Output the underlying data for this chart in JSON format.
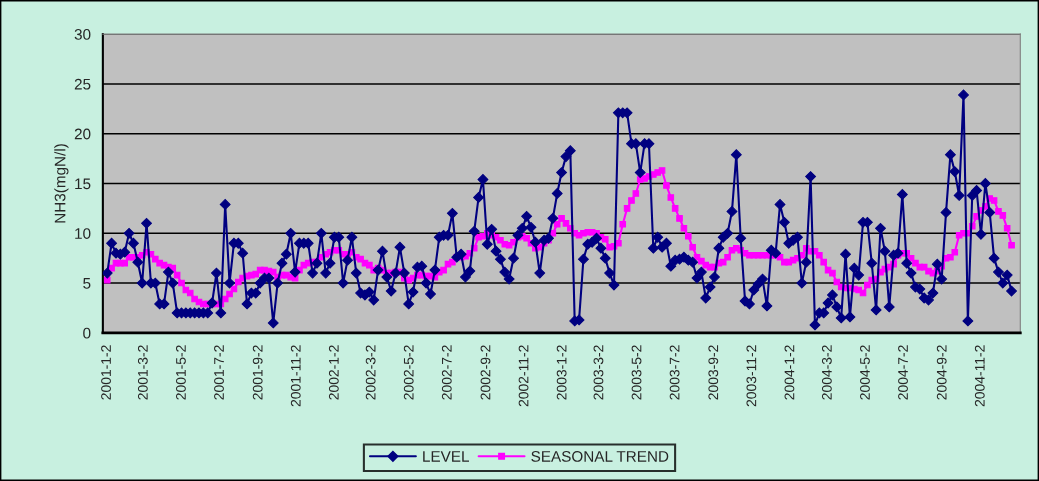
{
  "chart_data": {
    "type": "line",
    "ylabel": "NH3(mgN/l)",
    "x": [
      "2001-01-02",
      "2001-01-09",
      "2001-01-16",
      "2001-01-23",
      "2001-01-30",
      "2001-02-06",
      "2001-02-13",
      "2001-02-20",
      "2001-02-27",
      "2001-03-06",
      "2001-03-13",
      "2001-03-20",
      "2001-03-27",
      "2001-04-03",
      "2001-04-10",
      "2001-04-17",
      "2001-04-24",
      "2001-05-01",
      "2001-05-08",
      "2001-05-15",
      "2001-05-22",
      "2001-05-29",
      "2001-06-05",
      "2001-06-12",
      "2001-06-19",
      "2001-06-26",
      "2001-07-03",
      "2001-07-10",
      "2001-07-17",
      "2001-07-24",
      "2001-07-31",
      "2001-08-07",
      "2001-08-14",
      "2001-08-21",
      "2001-08-28",
      "2001-09-04",
      "2001-09-11",
      "2001-09-18",
      "2001-09-25",
      "2001-10-02",
      "2001-10-09",
      "2001-10-16",
      "2001-10-23",
      "2001-10-30",
      "2001-11-06",
      "2001-11-13",
      "2001-11-20",
      "2001-11-27",
      "2001-12-04",
      "2001-12-11",
      "2001-12-18",
      "2001-12-25",
      "2002-01-01",
      "2002-01-08",
      "2002-01-15",
      "2002-01-22",
      "2002-01-29",
      "2002-02-05",
      "2002-02-12",
      "2002-02-19",
      "2002-02-26",
      "2002-03-05",
      "2002-03-12",
      "2002-03-19",
      "2002-03-26",
      "2002-04-02",
      "2002-04-09",
      "2002-04-16",
      "2002-04-23",
      "2002-04-30",
      "2002-05-07",
      "2002-05-14",
      "2002-05-21",
      "2002-05-28",
      "2002-06-04",
      "2002-06-11",
      "2002-06-18",
      "2002-06-25",
      "2002-07-02",
      "2002-07-09",
      "2002-07-16",
      "2002-07-23",
      "2002-07-30",
      "2002-08-06",
      "2002-08-13",
      "2002-08-20",
      "2002-08-27",
      "2002-09-03",
      "2002-09-10",
      "2002-09-17",
      "2002-09-24",
      "2002-10-01",
      "2002-10-08",
      "2002-10-15",
      "2002-10-22",
      "2002-10-29",
      "2002-11-05",
      "2002-11-12",
      "2002-11-19",
      "2002-11-26",
      "2002-12-03",
      "2002-12-10",
      "2002-12-17",
      "2002-12-24",
      "2002-12-31",
      "2003-01-07",
      "2003-01-14",
      "2003-01-21",
      "2003-01-28",
      "2003-02-04",
      "2003-02-11",
      "2003-02-18",
      "2003-02-25",
      "2003-03-04",
      "2003-03-11",
      "2003-03-18",
      "2003-03-25",
      "2003-04-01",
      "2003-04-08",
      "2003-04-15",
      "2003-04-22",
      "2003-04-29",
      "2003-05-06",
      "2003-05-13",
      "2003-05-20",
      "2003-05-27",
      "2003-06-03",
      "2003-06-10",
      "2003-06-17",
      "2003-06-24",
      "2003-07-01",
      "2003-07-08",
      "2003-07-15",
      "2003-07-22",
      "2003-07-29",
      "2003-08-05",
      "2003-08-12",
      "2003-08-19",
      "2003-08-26",
      "2003-09-02",
      "2003-09-09",
      "2003-09-16",
      "2003-09-23",
      "2003-09-30",
      "2003-10-07",
      "2003-10-14",
      "2003-10-21",
      "2003-10-28",
      "2003-11-04",
      "2003-11-11",
      "2003-11-18",
      "2003-11-25",
      "2003-12-02",
      "2003-12-09",
      "2003-12-16",
      "2003-12-23",
      "2003-12-30",
      "2004-01-06",
      "2004-01-13",
      "2004-01-20",
      "2004-01-27",
      "2004-02-03",
      "2004-02-10",
      "2004-02-17",
      "2004-02-24",
      "2004-03-02",
      "2004-03-09",
      "2004-03-16",
      "2004-03-23",
      "2004-03-30",
      "2004-04-06",
      "2004-04-13",
      "2004-04-20",
      "2004-04-27",
      "2004-05-04",
      "2004-05-11",
      "2004-05-18",
      "2004-05-25",
      "2004-06-01",
      "2004-06-08",
      "2004-06-15",
      "2004-06-22",
      "2004-06-29",
      "2004-07-06",
      "2004-07-13",
      "2004-07-20",
      "2004-07-27",
      "2004-08-03",
      "2004-08-10",
      "2004-08-17",
      "2004-08-24",
      "2004-08-31",
      "2004-09-07",
      "2004-09-14",
      "2004-09-21",
      "2004-09-28",
      "2004-10-05",
      "2004-10-12",
      "2004-10-19",
      "2004-10-26",
      "2004-11-02",
      "2004-11-09",
      "2004-11-16",
      "2004-11-23",
      "2004-11-30",
      "2004-12-07",
      "2004-12-14",
      "2004-12-21"
    ],
    "series": [
      {
        "name": "LEVEL",
        "color": "#000080",
        "marker": "diamond",
        "values": [
          6.0,
          9.0,
          8.0,
          7.9,
          8.1,
          10.0,
          9.0,
          7.1,
          5.0,
          11.0,
          5.0,
          5.0,
          2.9,
          2.9,
          6.1,
          5.0,
          2.0,
          2.0,
          2.0,
          2.0,
          2.0,
          2.0,
          2.0,
          2.0,
          3.0,
          6.0,
          2.0,
          12.9,
          5.0,
          9.0,
          9.0,
          8.0,
          2.9,
          4.0,
          4.0,
          5.0,
          5.5,
          5.5,
          1.0,
          5.0,
          7.0,
          7.9,
          10.0,
          6.1,
          9.0,
          9.0,
          9.0,
          6.0,
          7.0,
          10.0,
          6.0,
          7.0,
          9.6,
          9.6,
          5.0,
          7.3,
          9.6,
          6.0,
          4.0,
          3.8,
          4.1,
          3.3,
          6.3,
          8.2,
          5.6,
          4.2,
          6.0,
          8.6,
          6.0,
          2.9,
          4.1,
          6.6,
          6.7,
          5.0,
          3.9,
          6.3,
          9.6,
          9.8,
          9.8,
          12.0,
          7.6,
          7.9,
          5.6,
          6.2,
          10.2,
          13.6,
          15.4,
          8.9,
          10.4,
          8.2,
          7.4,
          6.1,
          5.4,
          7.5,
          9.8,
          10.5,
          11.7,
          10.6,
          9.1,
          6.0,
          9.3,
          9.5,
          11.5,
          14.0,
          16.1,
          17.7,
          18.3,
          1.2,
          1.3,
          7.4,
          8.9,
          9.1,
          9.5,
          8.5,
          7.5,
          6.0,
          4.8,
          22.1,
          22.1,
          22.1,
          19.0,
          19.0,
          16.1,
          19.0,
          19.0,
          8.5,
          9.6,
          8.6,
          9.0,
          6.7,
          7.3,
          7.4,
          7.6,
          7.3,
          7.1,
          5.5,
          6.1,
          3.5,
          4.6,
          5.6,
          8.5,
          9.6,
          10.0,
          12.2,
          17.9,
          9.5,
          3.2,
          2.9,
          4.3,
          4.9,
          5.4,
          2.7,
          8.3,
          8.0,
          12.9,
          11.1,
          9.0,
          9.3,
          9.6,
          5.0,
          7.1,
          15.7,
          0.8,
          2.0,
          2.0,
          3.0,
          3.8,
          2.6,
          1.5,
          7.9,
          1.6,
          6.5,
          5.8,
          11.1,
          11.1,
          7.0,
          2.3,
          10.5,
          8.2,
          2.6,
          7.8,
          8.0,
          13.9,
          7.0,
          6.0,
          4.6,
          4.4,
          3.5,
          3.3,
          4.0,
          6.9,
          5.4,
          12.1,
          17.9,
          16.2,
          13.8,
          23.9,
          1.2,
          13.8,
          14.3,
          9.9,
          15.0,
          12.1,
          7.5,
          6.1,
          5.0,
          5.8,
          4.2
        ]
      },
      {
        "name": "SEASONAL TREND",
        "color": "#ff00ff",
        "marker": "square",
        "values": [
          5.3,
          6.5,
          7.0,
          7.0,
          7.0,
          7.6,
          7.6,
          7.6,
          7.8,
          8.1,
          7.9,
          7.4,
          7.0,
          6.8,
          6.6,
          6.5,
          5.8,
          5.0,
          4.3,
          4.0,
          3.4,
          3.1,
          2.9,
          2.9,
          2.9,
          2.9,
          2.9,
          3.4,
          3.9,
          4.4,
          5.1,
          5.5,
          5.7,
          5.8,
          5.9,
          6.3,
          6.3,
          6.2,
          6.1,
          5.6,
          5.8,
          5.8,
          5.6,
          5.5,
          6.3,
          6.8,
          7.0,
          7.1,
          7.1,
          7.6,
          7.9,
          8.1,
          8.3,
          8.3,
          7.9,
          7.9,
          8.1,
          7.6,
          7.4,
          7.0,
          6.8,
          6.3,
          6.5,
          6.3,
          6.0,
          6.0,
          6.1,
          6.1,
          5.5,
          5.3,
          5.5,
          5.8,
          5.8,
          5.7,
          5.7,
          5.6,
          6.1,
          6.3,
          6.9,
          7.1,
          7.6,
          7.6,
          7.7,
          8.0,
          8.5,
          9.6,
          9.7,
          10.0,
          9.8,
          9.6,
          9.3,
          8.9,
          8.8,
          9.1,
          9.6,
          9.7,
          9.5,
          9.0,
          8.5,
          8.6,
          9.0,
          9.3,
          10.0,
          10.9,
          11.5,
          11.0,
          10.5,
          10.0,
          9.8,
          10.0,
          10.1,
          10.1,
          10.0,
          9.6,
          9.4,
          8.6,
          8.7,
          9.0,
          10.9,
          12.5,
          13.3,
          14.0,
          15.4,
          15.5,
          15.7,
          15.9,
          16.1,
          16.3,
          14.8,
          13.6,
          12.5,
          11.5,
          10.5,
          9.7,
          8.6,
          7.6,
          7.2,
          6.8,
          6.6,
          6.6,
          7.0,
          7.1,
          7.6,
          8.3,
          8.5,
          8.3,
          8.0,
          7.8,
          7.8,
          7.8,
          7.8,
          7.8,
          7.8,
          7.8,
          7.6,
          7.1,
          7.1,
          7.3,
          7.5,
          7.8,
          8.5,
          8.2,
          8.2,
          7.8,
          7.1,
          6.3,
          6.0,
          5.1,
          4.6,
          4.5,
          4.5,
          4.4,
          4.3,
          4.0,
          4.8,
          5.3,
          5.4,
          6.1,
          6.4,
          6.6,
          6.9,
          7.8,
          8.0,
          8.0,
          7.5,
          7.0,
          6.6,
          6.6,
          6.2,
          6.0,
          6.2,
          6.7,
          7.5,
          7.6,
          8.1,
          9.8,
          10.0,
          10.0,
          10.7,
          11.7,
          12.3,
          12.7,
          13.5,
          13.3,
          12.2,
          11.8,
          10.5,
          8.8
        ]
      }
    ],
    "xlim": [
      "2000-12-26",
      "2005-01-04"
    ],
    "xticks": [
      {
        "value": "2001-01-02",
        "label": "2001-1-2"
      },
      {
        "value": "2001-03-02",
        "label": "2001-3-2"
      },
      {
        "value": "2001-05-02",
        "label": "2001-5-2"
      },
      {
        "value": "2001-07-02",
        "label": "2001-7-2"
      },
      {
        "value": "2001-09-02",
        "label": "2001-9-2"
      },
      {
        "value": "2001-11-02",
        "label": "2001-11-2"
      },
      {
        "value": "2002-01-02",
        "label": "2002-1-2"
      },
      {
        "value": "2002-03-02",
        "label": "2002-3-2"
      },
      {
        "value": "2002-05-02",
        "label": "2002-5-2"
      },
      {
        "value": "2002-07-02",
        "label": "2002-7-2"
      },
      {
        "value": "2002-09-02",
        "label": "2002-9-2"
      },
      {
        "value": "2002-11-02",
        "label": "2002-11-2"
      },
      {
        "value": "2003-01-02",
        "label": "2003-1-2"
      },
      {
        "value": "2003-03-02",
        "label": "2003-3-2"
      },
      {
        "value": "2003-05-02",
        "label": "2003-5-2"
      },
      {
        "value": "2003-07-02",
        "label": "2003-7-2"
      },
      {
        "value": "2003-09-02",
        "label": "2003-9-2"
      },
      {
        "value": "2003-11-02",
        "label": "2003-11-2"
      },
      {
        "value": "2004-01-02",
        "label": "2004-1-2"
      },
      {
        "value": "2004-03-02",
        "label": "2004-3-2"
      },
      {
        "value": "2004-05-02",
        "label": "2004-5-2"
      },
      {
        "value": "2004-07-02",
        "label": "2004-7-2"
      },
      {
        "value": "2004-09-02",
        "label": "2004-9-2"
      },
      {
        "value": "2004-11-02",
        "label": "2004-11-2"
      }
    ],
    "ylim": [
      0,
      30
    ],
    "yticks": [
      0,
      5,
      10,
      15,
      20,
      25,
      30
    ],
    "grid": "y",
    "legend": "bottom",
    "line_style": "solid"
  }
}
